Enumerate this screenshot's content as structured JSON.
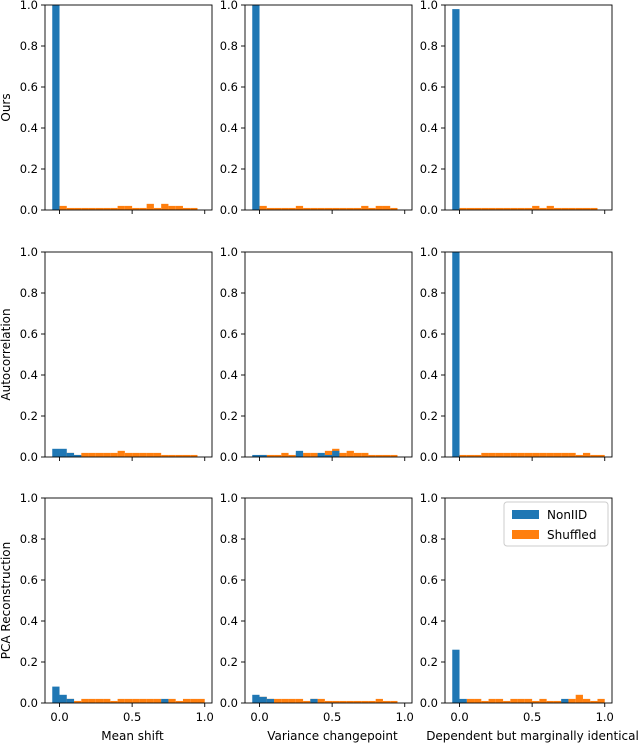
{
  "colors": {
    "nonIID": "#1f77b4",
    "shuffled": "#ff7f0e"
  },
  "legend": {
    "placement": "upper-right",
    "subplot": "PCA Reconstruction / Dependent but marginally identical",
    "entries": [
      "NonIID",
      "Shuffled"
    ]
  },
  "chart_data": {
    "type": "bar",
    "layout": "3x3 grid of histograms",
    "row_labels": [
      "Ours",
      "Autocorrelation",
      "PCA Reconstruction"
    ],
    "col_labels": [
      "Mean shift",
      "Variance changepoint",
      "Dependent but marginally identical"
    ],
    "ylim": [
      0,
      1.0
    ],
    "yticks": [
      0.0,
      0.2,
      0.4,
      0.6,
      0.8,
      1.0
    ],
    "yticklabels": [
      "0.0",
      "0.2",
      "0.4",
      "0.6",
      "0.8",
      "1.0"
    ],
    "xlim": [
      -0.1,
      1.05
    ],
    "xticks": [
      0.0,
      0.5,
      1.0
    ],
    "xticklabels": [
      "0.0",
      "0.5",
      "1.0"
    ],
    "bin_width": 0.05,
    "series_names": [
      "NonIID",
      "Shuffled"
    ],
    "panels": [
      {
        "row": 0,
        "col": 0,
        "NonIID": [
          [
            -0.05,
            1.0
          ]
        ],
        "Shuffled": [
          [
            0.0,
            0.02
          ],
          [
            0.05,
            0.01
          ],
          [
            0.1,
            0.01
          ],
          [
            0.15,
            0.01
          ],
          [
            0.2,
            0.01
          ],
          [
            0.25,
            0.01
          ],
          [
            0.3,
            0.01
          ],
          [
            0.35,
            0.01
          ],
          [
            0.4,
            0.02
          ],
          [
            0.45,
            0.02
          ],
          [
            0.5,
            0.01
          ],
          [
            0.55,
            0.01
          ],
          [
            0.6,
            0.03
          ],
          [
            0.65,
            0.01
          ],
          [
            0.7,
            0.03
          ],
          [
            0.75,
            0.02
          ],
          [
            0.8,
            0.02
          ],
          [
            0.85,
            0.01
          ],
          [
            0.9,
            0.01
          ]
        ]
      },
      {
        "row": 0,
        "col": 1,
        "NonIID": [
          [
            -0.05,
            1.0
          ]
        ],
        "Shuffled": [
          [
            0.0,
            0.02
          ],
          [
            0.05,
            0.01
          ],
          [
            0.1,
            0.01
          ],
          [
            0.15,
            0.01
          ],
          [
            0.2,
            0.01
          ],
          [
            0.25,
            0.02
          ],
          [
            0.3,
            0.01
          ],
          [
            0.35,
            0.01
          ],
          [
            0.4,
            0.01
          ],
          [
            0.45,
            0.01
          ],
          [
            0.5,
            0.01
          ],
          [
            0.55,
            0.01
          ],
          [
            0.6,
            0.01
          ],
          [
            0.65,
            0.01
          ],
          [
            0.7,
            0.02
          ],
          [
            0.75,
            0.01
          ],
          [
            0.8,
            0.02
          ],
          [
            0.85,
            0.02
          ],
          [
            0.9,
            0.01
          ]
        ]
      },
      {
        "row": 0,
        "col": 2,
        "NonIID": [
          [
            -0.05,
            0.98
          ]
        ],
        "Shuffled": [
          [
            0.0,
            0.01
          ],
          [
            0.05,
            0.01
          ],
          [
            0.1,
            0.01
          ],
          [
            0.15,
            0.01
          ],
          [
            0.2,
            0.01
          ],
          [
            0.25,
            0.01
          ],
          [
            0.3,
            0.01
          ],
          [
            0.35,
            0.01
          ],
          [
            0.4,
            0.01
          ],
          [
            0.45,
            0.01
          ],
          [
            0.5,
            0.02
          ],
          [
            0.55,
            0.01
          ],
          [
            0.6,
            0.02
          ],
          [
            0.65,
            0.01
          ],
          [
            0.7,
            0.01
          ],
          [
            0.75,
            0.01
          ],
          [
            0.8,
            0.01
          ],
          [
            0.85,
            0.01
          ],
          [
            0.9,
            0.01
          ]
        ]
      },
      {
        "row": 1,
        "col": 0,
        "NonIID": [
          [
            -0.05,
            0.04
          ],
          [
            0.0,
            0.04
          ],
          [
            0.05,
            0.02
          ],
          [
            0.1,
            0.01
          ]
        ],
        "Shuffled": [
          [
            0.0,
            0.02
          ],
          [
            0.05,
            0.02
          ],
          [
            0.1,
            0.01
          ],
          [
            0.15,
            0.02
          ],
          [
            0.2,
            0.02
          ],
          [
            0.25,
            0.02
          ],
          [
            0.3,
            0.02
          ],
          [
            0.35,
            0.02
          ],
          [
            0.4,
            0.03
          ],
          [
            0.45,
            0.02
          ],
          [
            0.5,
            0.02
          ],
          [
            0.55,
            0.02
          ],
          [
            0.6,
            0.02
          ],
          [
            0.65,
            0.02
          ],
          [
            0.7,
            0.01
          ],
          [
            0.75,
            0.01
          ],
          [
            0.8,
            0.01
          ],
          [
            0.85,
            0.01
          ],
          [
            0.9,
            0.01
          ]
        ]
      },
      {
        "row": 1,
        "col": 1,
        "NonIID": [
          [
            -0.05,
            0.01
          ],
          [
            0.0,
            0.01
          ],
          [
            0.25,
            0.03
          ],
          [
            0.4,
            0.02
          ],
          [
            0.45,
            0.01
          ],
          [
            0.5,
            0.03
          ]
        ],
        "Shuffled": [
          [
            0.0,
            0.01
          ],
          [
            0.05,
            0.01
          ],
          [
            0.1,
            0.01
          ],
          [
            0.15,
            0.02
          ],
          [
            0.2,
            0.01
          ],
          [
            0.25,
            0.02
          ],
          [
            0.3,
            0.02
          ],
          [
            0.35,
            0.02
          ],
          [
            0.4,
            0.01
          ],
          [
            0.45,
            0.03
          ],
          [
            0.5,
            0.04
          ],
          [
            0.55,
            0.02
          ],
          [
            0.6,
            0.03
          ],
          [
            0.65,
            0.02
          ],
          [
            0.7,
            0.02
          ],
          [
            0.75,
            0.01
          ],
          [
            0.8,
            0.01
          ],
          [
            0.85,
            0.01
          ],
          [
            0.9,
            0.01
          ]
        ]
      },
      {
        "row": 1,
        "col": 2,
        "NonIID": [
          [
            -0.05,
            1.0
          ]
        ],
        "Shuffled": [
          [
            0.0,
            0.01
          ],
          [
            0.05,
            0.01
          ],
          [
            0.1,
            0.01
          ],
          [
            0.15,
            0.02
          ],
          [
            0.2,
            0.02
          ],
          [
            0.25,
            0.02
          ],
          [
            0.3,
            0.02
          ],
          [
            0.35,
            0.02
          ],
          [
            0.4,
            0.02
          ],
          [
            0.45,
            0.02
          ],
          [
            0.5,
            0.02
          ],
          [
            0.55,
            0.02
          ],
          [
            0.6,
            0.02
          ],
          [
            0.65,
            0.02
          ],
          [
            0.7,
            0.02
          ],
          [
            0.75,
            0.02
          ],
          [
            0.8,
            0.01
          ],
          [
            0.85,
            0.02
          ],
          [
            0.9,
            0.01
          ],
          [
            0.95,
            0.01
          ]
        ]
      },
      {
        "row": 2,
        "col": 0,
        "NonIID": [
          [
            -0.05,
            0.08
          ],
          [
            0.0,
            0.04
          ],
          [
            0.05,
            0.02
          ],
          [
            0.7,
            0.02
          ]
        ],
        "Shuffled": [
          [
            0.0,
            0.02
          ],
          [
            0.05,
            0.02
          ],
          [
            0.1,
            0.01
          ],
          [
            0.15,
            0.02
          ],
          [
            0.2,
            0.02
          ],
          [
            0.25,
            0.02
          ],
          [
            0.3,
            0.02
          ],
          [
            0.35,
            0.01
          ],
          [
            0.4,
            0.02
          ],
          [
            0.45,
            0.02
          ],
          [
            0.5,
            0.02
          ],
          [
            0.55,
            0.02
          ],
          [
            0.6,
            0.02
          ],
          [
            0.65,
            0.02
          ],
          [
            0.7,
            0.01
          ],
          [
            0.75,
            0.02
          ],
          [
            0.8,
            0.01
          ],
          [
            0.85,
            0.02
          ],
          [
            0.9,
            0.02
          ],
          [
            0.95,
            0.02
          ]
        ]
      },
      {
        "row": 2,
        "col": 1,
        "NonIID": [
          [
            -0.05,
            0.04
          ],
          [
            0.0,
            0.03
          ],
          [
            0.05,
            0.02
          ],
          [
            0.35,
            0.02
          ]
        ],
        "Shuffled": [
          [
            0.0,
            0.03
          ],
          [
            0.05,
            0.02
          ],
          [
            0.1,
            0.02
          ],
          [
            0.15,
            0.02
          ],
          [
            0.2,
            0.02
          ],
          [
            0.25,
            0.02
          ],
          [
            0.3,
            0.01
          ],
          [
            0.35,
            0.02
          ],
          [
            0.4,
            0.02
          ],
          [
            0.45,
            0.01
          ],
          [
            0.5,
            0.01
          ],
          [
            0.55,
            0.01
          ],
          [
            0.6,
            0.01
          ],
          [
            0.65,
            0.01
          ],
          [
            0.7,
            0.01
          ],
          [
            0.75,
            0.01
          ],
          [
            0.8,
            0.02
          ],
          [
            0.85,
            0.01
          ],
          [
            0.9,
            0.01
          ]
        ]
      },
      {
        "row": 2,
        "col": 2,
        "NonIID": [
          [
            -0.05,
            0.26
          ],
          [
            0.0,
            0.02
          ],
          [
            0.7,
            0.02
          ]
        ],
        "Shuffled": [
          [
            0.0,
            0.01
          ],
          [
            0.05,
            0.02
          ],
          [
            0.1,
            0.02
          ],
          [
            0.15,
            0.01
          ],
          [
            0.2,
            0.02
          ],
          [
            0.25,
            0.02
          ],
          [
            0.3,
            0.01
          ],
          [
            0.35,
            0.02
          ],
          [
            0.4,
            0.02
          ],
          [
            0.45,
            0.02
          ],
          [
            0.5,
            0.01
          ],
          [
            0.55,
            0.02
          ],
          [
            0.6,
            0.01
          ],
          [
            0.65,
            0.01
          ],
          [
            0.7,
            0.01
          ],
          [
            0.75,
            0.02
          ],
          [
            0.8,
            0.04
          ],
          [
            0.85,
            0.02
          ],
          [
            0.9,
            0.01
          ],
          [
            0.95,
            0.02
          ]
        ]
      }
    ]
  }
}
